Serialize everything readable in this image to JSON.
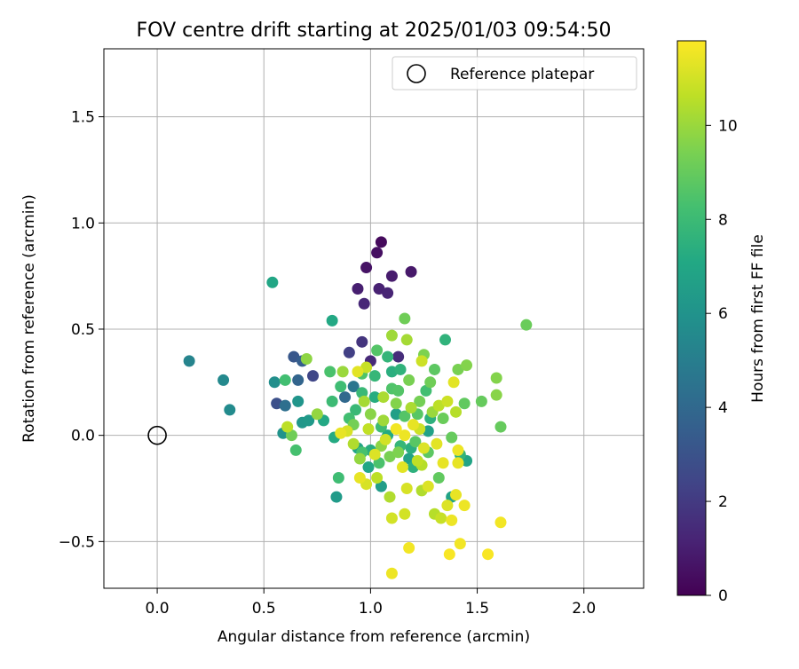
{
  "chart_data": {
    "type": "scatter",
    "title": "FOV centre drift starting at 2025/01/03 09:54:50",
    "xlabel": "Angular distance from reference (arcmin)",
    "ylabel": "Rotation from reference (arcmin)",
    "xlim": [
      -0.25,
      2.28
    ],
    "ylim": [
      -0.72,
      1.82
    ],
    "x_ticks": [
      0.0,
      0.5,
      1.0,
      1.5,
      2.0
    ],
    "y_ticks": [
      -0.5,
      0.0,
      0.5,
      1.0,
      1.5
    ],
    "x_tick_labels": [
      "0.0",
      "0.5",
      "1.0",
      "1.5",
      "2.0"
    ],
    "y_tick_labels": [
      "−0.5",
      "0.0",
      "0.5",
      "1.0",
      "1.5"
    ],
    "grid": true,
    "legend": {
      "placement": "top-right",
      "entries": [
        {
          "label": "Reference platepar",
          "marker": "open-circle",
          "color": "#000000"
        }
      ]
    },
    "reference_point": {
      "x": 0.0,
      "y": 0.0
    },
    "colorbar": {
      "label": "Hours from first FF file",
      "colormap": "viridis",
      "range": [
        0,
        11.8
      ],
      "ticks": [
        0,
        2,
        4,
        6,
        8,
        10
      ],
      "tick_labels": [
        "0",
        "2",
        "4",
        "6",
        "8",
        "10"
      ]
    },
    "points": [
      {
        "x": 1.05,
        "y": 0.91,
        "h": 0.3
      },
      {
        "x": 1.03,
        "y": 0.86,
        "h": 0.5
      },
      {
        "x": 0.98,
        "y": 0.79,
        "h": 0.6
      },
      {
        "x": 1.19,
        "y": 0.77,
        "h": 0.8
      },
      {
        "x": 1.1,
        "y": 0.75,
        "h": 0.9
      },
      {
        "x": 0.94,
        "y": 0.69,
        "h": 1.0
      },
      {
        "x": 1.04,
        "y": 0.69,
        "h": 1.1
      },
      {
        "x": 1.08,
        "y": 0.67,
        "h": 1.2
      },
      {
        "x": 0.97,
        "y": 0.62,
        "h": 1.3
      },
      {
        "x": 1.0,
        "y": 0.35,
        "h": 1.4
      },
      {
        "x": 1.13,
        "y": 0.37,
        "h": 1.5
      },
      {
        "x": 0.96,
        "y": 0.44,
        "h": 1.8
      },
      {
        "x": 0.9,
        "y": 0.39,
        "h": 2.2
      },
      {
        "x": 0.73,
        "y": 0.28,
        "h": 2.5
      },
      {
        "x": 0.56,
        "y": 0.15,
        "h": 2.9
      },
      {
        "x": 0.64,
        "y": 0.37,
        "h": 3.2
      },
      {
        "x": 0.68,
        "y": 0.35,
        "h": 3.5
      },
      {
        "x": 0.66,
        "y": 0.26,
        "h": 3.8
      },
      {
        "x": 0.88,
        "y": 0.18,
        "h": 4.0
      },
      {
        "x": 0.6,
        "y": 0.14,
        "h": 4.3
      },
      {
        "x": 0.92,
        "y": 0.23,
        "h": 4.6
      },
      {
        "x": 0.15,
        "y": 0.35,
        "h": 5.3
      },
      {
        "x": 0.31,
        "y": 0.26,
        "h": 5.5
      },
      {
        "x": 0.34,
        "y": 0.12,
        "h": 5.6
      },
      {
        "x": 0.55,
        "y": 0.25,
        "h": 5.8
      },
      {
        "x": 0.59,
        "y": 0.01,
        "h": 6.0
      },
      {
        "x": 0.66,
        "y": 0.16,
        "h": 6.1
      },
      {
        "x": 0.68,
        "y": 0.06,
        "h": 6.2
      },
      {
        "x": 0.71,
        "y": 0.07,
        "h": 6.3
      },
      {
        "x": 0.84,
        "y": -0.29,
        "h": 6.4
      },
      {
        "x": 1.05,
        "y": -0.24,
        "h": 6.5
      },
      {
        "x": 1.12,
        "y": 0.1,
        "h": 6.6
      },
      {
        "x": 1.18,
        "y": -0.11,
        "h": 6.7
      },
      {
        "x": 1.27,
        "y": 0.02,
        "h": 6.7
      },
      {
        "x": 1.38,
        "y": -0.29,
        "h": 6.8
      },
      {
        "x": 1.45,
        "y": -0.12,
        "h": 6.9
      },
      {
        "x": 0.54,
        "y": 0.72,
        "h": 7.0
      },
      {
        "x": 0.82,
        "y": 0.54,
        "h": 7.1
      },
      {
        "x": 0.78,
        "y": 0.07,
        "h": 7.1
      },
      {
        "x": 0.83,
        "y": -0.01,
        "h": 7.2
      },
      {
        "x": 1.0,
        "y": -0.07,
        "h": 7.3
      },
      {
        "x": 1.02,
        "y": 0.18,
        "h": 7.3
      },
      {
        "x": 1.1,
        "y": 0.3,
        "h": 7.4
      },
      {
        "x": 1.2,
        "y": -0.15,
        "h": 7.5
      },
      {
        "x": 1.28,
        "y": 0.08,
        "h": 7.5
      },
      {
        "x": 1.35,
        "y": 0.45,
        "h": 7.6
      },
      {
        "x": 1.42,
        "y": -0.09,
        "h": 7.7
      },
      {
        "x": 1.14,
        "y": -0.05,
        "h": 7.8
      },
      {
        "x": 0.93,
        "y": 0.12,
        "h": 7.9
      },
      {
        "x": 1.05,
        "y": 0.04,
        "h": 8.0
      },
      {
        "x": 0.85,
        "y": -0.2,
        "h": 8.1
      },
      {
        "x": 0.6,
        "y": 0.26,
        "h": 8.2
      },
      {
        "x": 0.65,
        "y": -0.07,
        "h": 8.3
      },
      {
        "x": 0.81,
        "y": 0.3,
        "h": 8.4
      },
      {
        "x": 0.96,
        "y": 0.29,
        "h": 8.5
      },
      {
        "x": 1.03,
        "y": 0.4,
        "h": 8.6
      },
      {
        "x": 1.13,
        "y": 0.21,
        "h": 8.6
      },
      {
        "x": 1.22,
        "y": 0.1,
        "h": 8.7
      },
      {
        "x": 1.3,
        "y": 0.31,
        "h": 8.8
      },
      {
        "x": 1.44,
        "y": 0.15,
        "h": 8.9
      },
      {
        "x": 1.52,
        "y": 0.16,
        "h": 9.0
      },
      {
        "x": 1.61,
        "y": 0.04,
        "h": 9.0
      },
      {
        "x": 1.73,
        "y": 0.52,
        "h": 9.1
      },
      {
        "x": 1.16,
        "y": 0.55,
        "h": 9.2
      },
      {
        "x": 0.63,
        "y": 0.0,
        "h": 9.2
      },
      {
        "x": 0.92,
        "y": 0.05,
        "h": 9.3
      },
      {
        "x": 1.09,
        "y": -0.1,
        "h": 9.4
      },
      {
        "x": 1.25,
        "y": 0.38,
        "h": 9.5
      },
      {
        "x": 1.45,
        "y": 0.33,
        "h": 9.6
      },
      {
        "x": 1.59,
        "y": 0.27,
        "h": 9.6
      },
      {
        "x": 1.59,
        "y": 0.19,
        "h": 9.7
      },
      {
        "x": 0.7,
        "y": 0.36,
        "h": 9.8
      },
      {
        "x": 0.75,
        "y": 0.1,
        "h": 9.9
      },
      {
        "x": 0.87,
        "y": 0.3,
        "h": 10.0
      },
      {
        "x": 1.1,
        "y": 0.47,
        "h": 10.1
      },
      {
        "x": 1.17,
        "y": 0.45,
        "h": 10.2
      },
      {
        "x": 1.06,
        "y": 0.18,
        "h": 10.3
      },
      {
        "x": 1.24,
        "y": -0.26,
        "h": 10.4
      },
      {
        "x": 1.4,
        "y": 0.11,
        "h": 10.5
      },
      {
        "x": 0.61,
        "y": 0.04,
        "h": 10.6
      },
      {
        "x": 0.98,
        "y": 0.32,
        "h": 10.8
      },
      {
        "x": 1.1,
        "y": -0.39,
        "h": 11.0
      },
      {
        "x": 1.16,
        "y": -0.37,
        "h": 11.0
      },
      {
        "x": 0.89,
        "y": 0.02,
        "h": 11.1
      },
      {
        "x": 1.02,
        "y": -0.09,
        "h": 11.2
      },
      {
        "x": 1.1,
        "y": -0.65,
        "h": 11.5
      },
      {
        "x": 1.18,
        "y": -0.53,
        "h": 11.6
      },
      {
        "x": 1.37,
        "y": -0.56,
        "h": 11.7
      },
      {
        "x": 1.42,
        "y": -0.51,
        "h": 11.6
      },
      {
        "x": 1.55,
        "y": -0.56,
        "h": 11.7
      },
      {
        "x": 1.61,
        "y": -0.41,
        "h": 11.6
      },
      {
        "x": 1.44,
        "y": -0.33,
        "h": 11.5
      },
      {
        "x": 1.38,
        "y": -0.4,
        "h": 11.5
      },
      {
        "x": 1.41,
        "y": -0.13,
        "h": 11.4
      },
      {
        "x": 1.41,
        "y": -0.07,
        "h": 11.5
      },
      {
        "x": 1.34,
        "y": -0.13,
        "h": 11.4
      },
      {
        "x": 1.39,
        "y": 0.25,
        "h": 11.3
      },
      {
        "x": 1.31,
        "y": -0.04,
        "h": 11.3
      },
      {
        "x": 1.27,
        "y": -0.24,
        "h": 11.2
      },
      {
        "x": 1.24,
        "y": 0.35,
        "h": 10.9
      },
      {
        "x": 0.94,
        "y": 0.3,
        "h": 11.3
      },
      {
        "x": 0.97,
        "y": 0.16,
        "h": 10.2
      },
      {
        "x": 0.86,
        "y": 0.01,
        "h": 11.4
      },
      {
        "x": 0.95,
        "y": -0.2,
        "h": 11.4
      },
      {
        "x": 0.98,
        "y": -0.23,
        "h": 11.1
      },
      {
        "x": 1.03,
        "y": -0.2,
        "h": 10.6
      },
      {
        "x": 1.09,
        "y": -0.29,
        "h": 10.4
      },
      {
        "x": 1.17,
        "y": -0.25,
        "h": 11.1
      },
      {
        "x": 1.22,
        "y": -0.12,
        "h": 10.7
      },
      {
        "x": 1.2,
        "y": 0.05,
        "h": 11.4
      },
      {
        "x": 1.16,
        "y": 0.0,
        "h": 11.5
      },
      {
        "x": 1.12,
        "y": 0.03,
        "h": 11.6
      },
      {
        "x": 1.07,
        "y": -0.02,
        "h": 11.0
      },
      {
        "x": 1.15,
        "y": -0.15,
        "h": 11.3
      },
      {
        "x": 1.25,
        "y": -0.06,
        "h": 11.2
      },
      {
        "x": 1.3,
        "y": -0.37,
        "h": 10.5
      },
      {
        "x": 1.33,
        "y": -0.39,
        "h": 10.8
      },
      {
        "x": 1.36,
        "y": -0.33,
        "h": 11.2
      },
      {
        "x": 1.4,
        "y": -0.28,
        "h": 11.4
      },
      {
        "x": 1.32,
        "y": 0.14,
        "h": 10.6
      },
      {
        "x": 1.23,
        "y": 0.03,
        "h": 10.9
      },
      {
        "x": 1.06,
        "y": 0.07,
        "h": 10.1
      },
      {
        "x": 0.92,
        "y": -0.04,
        "h": 10.4
      },
      {
        "x": 1.0,
        "y": 0.1,
        "h": 9.7
      },
      {
        "x": 1.12,
        "y": 0.15,
        "h": 9.6
      },
      {
        "x": 1.18,
        "y": 0.26,
        "h": 9.4
      },
      {
        "x": 1.23,
        "y": 0.16,
        "h": 9.3
      },
      {
        "x": 1.28,
        "y": 0.25,
        "h": 9.2
      },
      {
        "x": 1.34,
        "y": 0.08,
        "h": 9.1
      },
      {
        "x": 1.38,
        "y": -0.01,
        "h": 9.0
      },
      {
        "x": 1.41,
        "y": 0.31,
        "h": 9.4
      },
      {
        "x": 1.32,
        "y": -0.2,
        "h": 8.9
      },
      {
        "x": 1.27,
        "y": -0.08,
        "h": 8.8
      },
      {
        "x": 1.21,
        "y": -0.03,
        "h": 8.7
      },
      {
        "x": 1.16,
        "y": 0.09,
        "h": 8.6
      },
      {
        "x": 1.1,
        "y": 0.22,
        "h": 8.5
      },
      {
        "x": 1.04,
        "y": -0.13,
        "h": 8.4
      },
      {
        "x": 0.96,
        "y": -0.08,
        "h": 8.3
      },
      {
        "x": 0.9,
        "y": 0.08,
        "h": 8.2
      },
      {
        "x": 0.86,
        "y": 0.23,
        "h": 8.1
      },
      {
        "x": 0.82,
        "y": 0.16,
        "h": 8.0
      },
      {
        "x": 0.96,
        "y": 0.2,
        "h": 7.9
      },
      {
        "x": 1.02,
        "y": 0.28,
        "h": 7.8
      },
      {
        "x": 1.08,
        "y": 0.37,
        "h": 7.7
      },
      {
        "x": 1.14,
        "y": 0.31,
        "h": 7.6
      },
      {
        "x": 1.19,
        "y": -0.06,
        "h": 7.4
      },
      {
        "x": 1.08,
        "y": 0.0,
        "h": 7.2
      },
      {
        "x": 0.99,
        "y": -0.15,
        "h": 7.0
      },
      {
        "x": 0.94,
        "y": -0.06,
        "h": 6.9
      },
      {
        "x": 1.26,
        "y": 0.21,
        "h": 8.2
      },
      {
        "x": 1.29,
        "y": 0.11,
        "h": 10.0
      },
      {
        "x": 1.19,
        "y": 0.13,
        "h": 10.3
      },
      {
        "x": 0.99,
        "y": 0.03,
        "h": 10.7
      },
      {
        "x": 0.95,
        "y": -0.11,
        "h": 9.9
      },
      {
        "x": 1.05,
        "y": -0.05,
        "h": 9.8
      },
      {
        "x": 1.13,
        "y": -0.08,
        "h": 9.5
      },
      {
        "x": 1.36,
        "y": 0.16,
        "h": 10.9
      },
      {
        "x": 1.24,
        "y": -0.14,
        "h": 10.5
      }
    ]
  }
}
